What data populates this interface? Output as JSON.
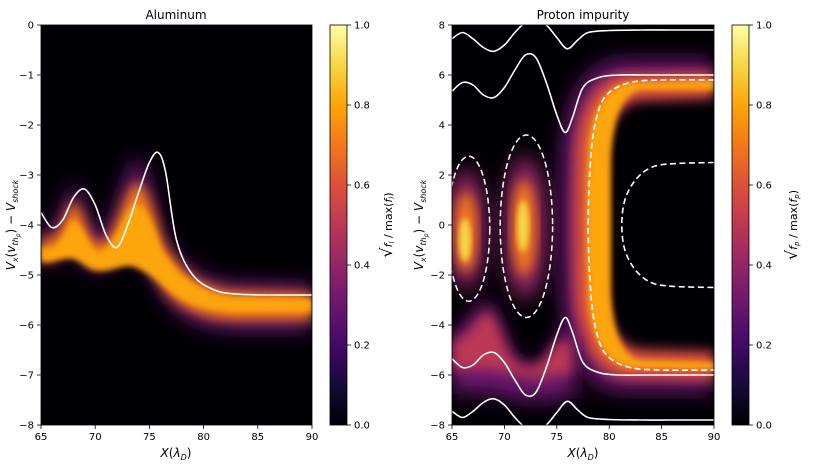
{
  "chart_data": [
    {
      "type": "heatmap",
      "title": "Aluminum",
      "xlabel": "X(λ_D)",
      "ylabel": "V_x(v_{th_p}) − V_shock",
      "xlim": [
        65,
        90
      ],
      "ylim": [
        -8,
        0
      ],
      "xticks": [
        65,
        70,
        75,
        80,
        85,
        90
      ],
      "yticks": [
        0,
        -1,
        -2,
        -3,
        -4,
        -5,
        -6,
        -7,
        -8
      ],
      "colormap": "inferno",
      "colorbar": {
        "label": "sqrt(f_l / max(f_l))",
        "range": [
          0,
          1
        ],
        "ticks": [
          "0.0",
          "0.2",
          "0.4",
          "0.6",
          "0.8",
          "1.0"
        ]
      },
      "curves": [
        {
          "name": "separatrix",
          "style": "solid",
          "color": "#ffffff",
          "x": [
            65,
            66,
            67,
            68,
            69,
            70,
            71,
            72,
            73,
            74,
            75,
            75.8,
            76.5,
            77.5,
            79,
            81,
            83,
            86,
            90
          ],
          "y": [
            -3.75,
            -4.05,
            -3.9,
            -3.45,
            -3.28,
            -3.6,
            -4.2,
            -4.45,
            -4.0,
            -3.35,
            -2.75,
            -2.55,
            -2.95,
            -4.3,
            -5.0,
            -5.3,
            -5.38,
            -5.4,
            -5.4
          ]
        }
      ]
    },
    {
      "type": "heatmap",
      "title": "Proton impurity",
      "xlabel": "X(λ_D)",
      "ylabel": "V_x(v_{th_p}) − V_shock",
      "xlim": [
        65,
        90
      ],
      "ylim": [
        -8,
        8
      ],
      "xticks": [
        65,
        70,
        75,
        80,
        85,
        90
      ],
      "yticks": [
        8,
        6,
        4,
        2,
        0,
        -2,
        -4,
        -6,
        -8
      ],
      "colormap": "inferno",
      "colorbar": {
        "label": "sqrt(f_p / max(f_p))",
        "range": [
          0,
          1
        ],
        "ticks": [
          "0.0",
          "0.2",
          "0.4",
          "0.6",
          "0.8",
          "1.0"
        ]
      },
      "curves": [
        {
          "name": "upper-outer",
          "style": "solid",
          "color": "#ffffff",
          "x": [
            65,
            66,
            67,
            68,
            69,
            70,
            71,
            72,
            73,
            74,
            75,
            76,
            77,
            78,
            80,
            83,
            86,
            90
          ],
          "y": [
            7.45,
            7.7,
            7.45,
            7.1,
            6.95,
            7.2,
            7.7,
            8.1,
            8.2,
            8.0,
            7.5,
            7.05,
            7.4,
            7.7,
            7.78,
            7.8,
            7.8,
            7.8
          ]
        },
        {
          "name": "upper-inner",
          "style": "solid",
          "color": "#ffffff",
          "x": [
            65,
            66,
            67,
            68,
            69,
            70,
            71,
            72,
            73,
            74,
            75,
            75.8,
            76.5,
            77.5,
            79,
            81,
            84,
            90
          ],
          "y": [
            5.35,
            5.7,
            5.6,
            5.2,
            5.1,
            5.5,
            6.2,
            6.8,
            6.7,
            5.7,
            4.4,
            3.7,
            4.3,
            5.5,
            5.9,
            6.0,
            6.0,
            6.0
          ]
        },
        {
          "name": "lower-inner",
          "style": "solid",
          "color": "#ffffff",
          "x": [
            65,
            66,
            67,
            68,
            69,
            70,
            71,
            72,
            73,
            74,
            75,
            75.8,
            76.5,
            77.5,
            79,
            81,
            84,
            90
          ],
          "y": [
            -5.35,
            -5.7,
            -5.6,
            -5.2,
            -5.1,
            -5.5,
            -6.2,
            -6.8,
            -6.7,
            -5.7,
            -4.4,
            -3.7,
            -4.3,
            -5.5,
            -5.9,
            -6.0,
            -6.0,
            -6.0
          ]
        },
        {
          "name": "lower-outer",
          "style": "solid",
          "color": "#ffffff",
          "x": [
            65,
            66,
            67,
            68,
            69,
            70,
            71,
            72,
            73,
            74,
            75,
            76,
            77,
            78,
            80,
            83,
            86,
            90
          ],
          "y": [
            -7.45,
            -7.7,
            -7.45,
            -7.1,
            -6.95,
            -7.2,
            -7.7,
            -8.1,
            -8.2,
            -8.0,
            -7.5,
            -7.05,
            -7.4,
            -7.7,
            -7.78,
            -7.8,
            -7.8,
            -7.8
          ]
        },
        {
          "name": "vortex-left",
          "style": "dashed",
          "color": "#ffffff",
          "ellipse": {
            "cx": 66.6,
            "cy": -0.15,
            "rx": 2.0,
            "ry": 2.9
          }
        },
        {
          "name": "vortex-middle",
          "style": "dashed",
          "color": "#ffffff",
          "ellipse": {
            "cx": 72.1,
            "cy": -0.05,
            "rx": 2.5,
            "ry": 3.65
          }
        },
        {
          "name": "outer-separatrix",
          "style": "dashed",
          "color": "#ffffff",
          "x": [
            90,
            85,
            82,
            80,
            79,
            78.3,
            78,
            78.3,
            79,
            80,
            82,
            85,
            90
          ],
          "y": [
            5.8,
            5.8,
            5.7,
            5.3,
            4.6,
            3,
            0,
            -3,
            -4.6,
            -5.3,
            -5.7,
            -5.8,
            -5.8
          ]
        },
        {
          "name": "inner-separatrix",
          "style": "dashed",
          "color": "#ffffff",
          "x": [
            90,
            86,
            84,
            82.5,
            81.5,
            81.2,
            81.5,
            82.5,
            84,
            86,
            90
          ],
          "y": [
            2.5,
            2.45,
            2.3,
            1.8,
            1.0,
            0,
            -1.0,
            -1.8,
            -2.3,
            -2.45,
            -2.5
          ]
        }
      ]
    }
  ]
}
